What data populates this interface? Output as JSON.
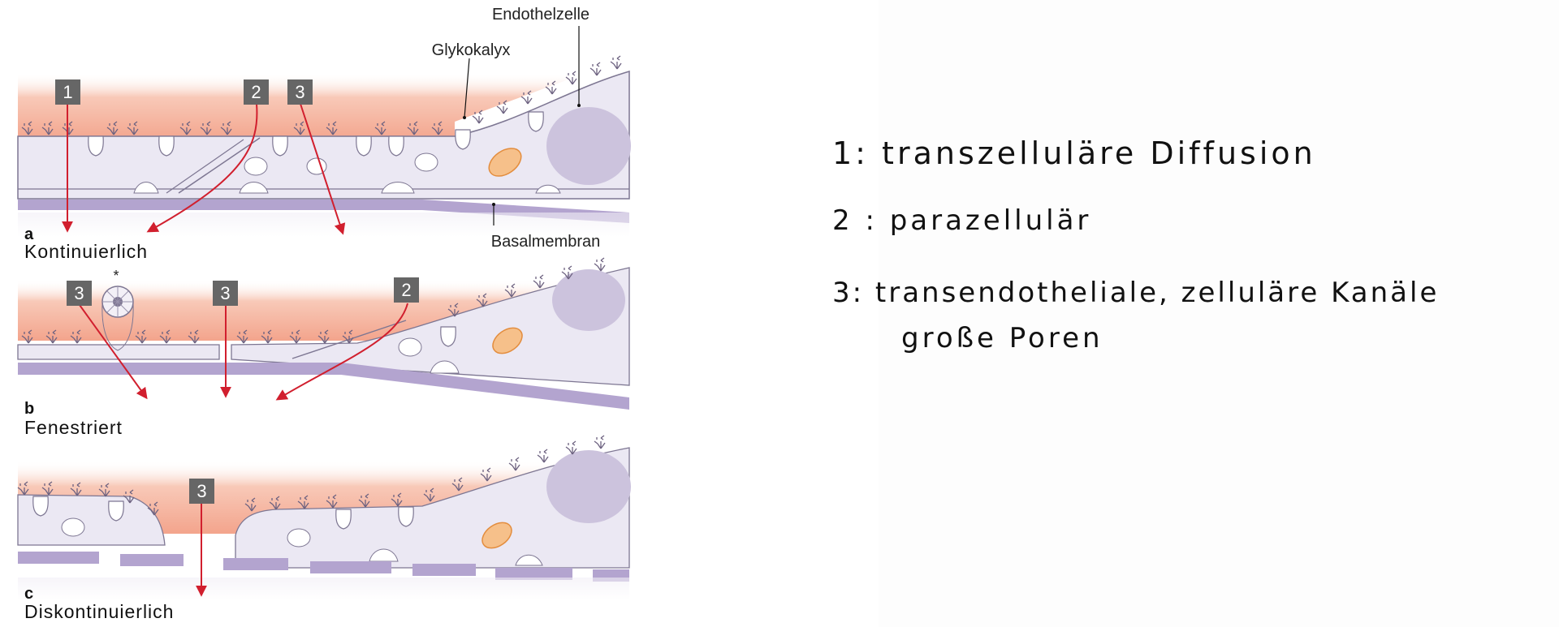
{
  "diagram": {
    "labels": {
      "endothelzelle": "Endothelzelle",
      "glykokalyx": "Glykokalyx",
      "basalmembran": "Basalmembran",
      "asterisk": "*"
    },
    "panels": [
      {
        "letter": "a",
        "title": "Kontinuierlich",
        "markers": [
          "1",
          "2",
          "3"
        ]
      },
      {
        "letter": "b",
        "title": "Fenestriert",
        "markers": [
          "3",
          "3",
          "2"
        ]
      },
      {
        "letter": "c",
        "title": "Diskontinuierlich",
        "markers": [
          "3"
        ]
      }
    ]
  },
  "notes": {
    "line1": "1: transzelluläre Diffusion",
    "line2": "2 : parazellulär",
    "line3": "3: transendotheliale, zelluläre Kanäle",
    "line4": "große Poren"
  },
  "colors": {
    "arrow": "#d11f2e",
    "marker_bg": "#666666",
    "cell_fill": "#ebe8f3",
    "cell_stroke": "#7d7692",
    "basement": "#b3a4cf",
    "lumen_pink": "#f6b7a2",
    "mito": "#f1a85c",
    "nucleus": "#ccc3dd"
  }
}
